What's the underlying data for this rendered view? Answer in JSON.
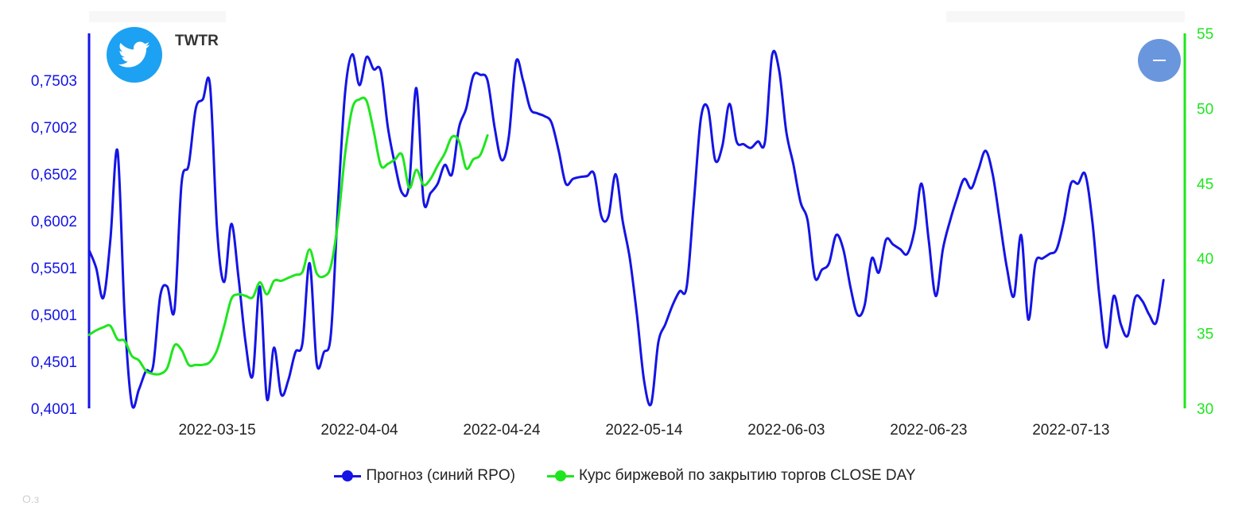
{
  "header": {
    "ticker": "TWTR",
    "logo_icon": "twitter-bird-icon"
  },
  "controls": {
    "collapse_icon": "minus-icon"
  },
  "colors": {
    "forecast": "#1414e6",
    "close": "#1ee61e",
    "twitter_blue": "#1da1f2",
    "button": "#6a96de"
  },
  "chart_data": {
    "type": "line",
    "x_ticks": [
      "2022-03-15",
      "2022-04-04",
      "2022-04-24",
      "2022-05-14",
      "2022-06-03",
      "2022-06-23",
      "2022-07-13"
    ],
    "x_tick_days": [
      18,
      38,
      58,
      78,
      98,
      118,
      138
    ],
    "x_range": [
      "2022-02-25",
      "2022-07-29"
    ],
    "legend_position": "bottom-center",
    "grid": false,
    "y_left": {
      "ticks": [
        "0,4001",
        "0,4501",
        "0,5001",
        "0,5501",
        "0,6002",
        "0,6502",
        "0,7002",
        "0,7503"
      ],
      "range": [
        0.4001,
        0.8003
      ],
      "color": "#1414e6"
    },
    "y_right": {
      "ticks": [
        "30",
        "35",
        "40",
        "45",
        "50",
        "55"
      ],
      "range": [
        30,
        55
      ],
      "color": "#1ee61e"
    },
    "series": [
      {
        "name": "Прогноз (синий RPO)",
        "axis": "left",
        "color": "#1414e6",
        "points": [
          [
            "2022-02-25",
            0.569
          ],
          [
            "2022-02-26",
            0.55
          ],
          [
            "2022-02-27",
            0.518
          ],
          [
            "2022-02-28",
            0.58
          ],
          [
            "2022-03-01",
            0.675
          ],
          [
            "2022-03-02",
            0.5
          ],
          [
            "2022-03-03",
            0.405
          ],
          [
            "2022-03-04",
            0.42
          ],
          [
            "2022-03-05",
            0.44
          ],
          [
            "2022-03-06",
            0.445
          ],
          [
            "2022-03-07",
            0.52
          ],
          [
            "2022-03-08",
            0.53
          ],
          [
            "2022-03-09",
            0.505
          ],
          [
            "2022-03-10",
            0.64
          ],
          [
            "2022-03-11",
            0.66
          ],
          [
            "2022-03-12",
            0.72
          ],
          [
            "2022-03-13",
            0.73
          ],
          [
            "2022-03-14",
            0.745
          ],
          [
            "2022-03-15",
            0.59
          ],
          [
            "2022-03-16",
            0.535
          ],
          [
            "2022-03-17",
            0.597
          ],
          [
            "2022-03-18",
            0.54
          ],
          [
            "2022-03-19",
            0.47
          ],
          [
            "2022-03-20",
            0.435
          ],
          [
            "2022-03-21",
            0.53
          ],
          [
            "2022-03-22",
            0.41
          ],
          [
            "2022-03-23",
            0.465
          ],
          [
            "2022-03-24",
            0.415
          ],
          [
            "2022-03-25",
            0.43
          ],
          [
            "2022-03-26",
            0.46
          ],
          [
            "2022-03-27",
            0.47
          ],
          [
            "2022-03-28",
            0.555
          ],
          [
            "2022-03-29",
            0.448
          ],
          [
            "2022-03-30",
            0.46
          ],
          [
            "2022-03-31",
            0.48
          ],
          [
            "2022-04-01",
            0.62
          ],
          [
            "2022-04-02",
            0.738
          ],
          [
            "2022-04-03",
            0.778
          ],
          [
            "2022-04-04",
            0.745
          ],
          [
            "2022-04-05",
            0.775
          ],
          [
            "2022-04-06",
            0.762
          ],
          [
            "2022-04-07",
            0.76
          ],
          [
            "2022-04-08",
            0.7
          ],
          [
            "2022-04-09",
            0.66
          ],
          [
            "2022-04-10",
            0.63
          ],
          [
            "2022-04-11",
            0.64
          ],
          [
            "2022-04-12",
            0.742
          ],
          [
            "2022-04-13",
            0.622
          ],
          [
            "2022-04-14",
            0.63
          ],
          [
            "2022-04-15",
            0.64
          ],
          [
            "2022-04-16",
            0.66
          ],
          [
            "2022-04-17",
            0.65
          ],
          [
            "2022-04-18",
            0.7
          ],
          [
            "2022-04-19",
            0.72
          ],
          [
            "2022-04-20",
            0.755
          ],
          [
            "2022-04-21",
            0.756
          ],
          [
            "2022-04-22",
            0.75
          ],
          [
            "2022-04-23",
            0.7
          ],
          [
            "2022-04-24",
            0.665
          ],
          [
            "2022-04-25",
            0.69
          ],
          [
            "2022-04-26",
            0.77
          ],
          [
            "2022-04-27",
            0.75
          ],
          [
            "2022-04-28",
            0.72
          ],
          [
            "2022-04-29",
            0.715
          ],
          [
            "2022-04-30",
            0.712
          ],
          [
            "2022-05-01",
            0.705
          ],
          [
            "2022-05-02",
            0.675
          ],
          [
            "2022-05-03",
            0.64
          ],
          [
            "2022-05-04",
            0.645
          ],
          [
            "2022-05-05",
            0.647
          ],
          [
            "2022-05-06",
            0.648
          ],
          [
            "2022-05-07",
            0.65
          ],
          [
            "2022-05-08",
            0.605
          ],
          [
            "2022-05-09",
            0.605
          ],
          [
            "2022-05-10",
            0.65
          ],
          [
            "2022-05-11",
            0.6
          ],
          [
            "2022-05-12",
            0.56
          ],
          [
            "2022-05-13",
            0.5
          ],
          [
            "2022-05-14",
            0.43
          ],
          [
            "2022-05-15",
            0.405
          ],
          [
            "2022-05-16",
            0.47
          ],
          [
            "2022-05-17",
            0.49
          ],
          [
            "2022-05-18",
            0.51
          ],
          [
            "2022-05-19",
            0.525
          ],
          [
            "2022-05-20",
            0.53
          ],
          [
            "2022-05-21",
            0.62
          ],
          [
            "2022-05-22",
            0.71
          ],
          [
            "2022-05-23",
            0.72
          ],
          [
            "2022-05-24",
            0.665
          ],
          [
            "2022-05-25",
            0.68
          ],
          [
            "2022-05-26",
            0.725
          ],
          [
            "2022-05-27",
            0.685
          ],
          [
            "2022-05-28",
            0.682
          ],
          [
            "2022-05-29",
            0.678
          ],
          [
            "2022-05-30",
            0.685
          ],
          [
            "2022-05-31",
            0.685
          ],
          [
            "2022-06-01",
            0.777
          ],
          [
            "2022-06-02",
            0.76
          ],
          [
            "2022-06-03",
            0.695
          ],
          [
            "2022-06-04",
            0.66
          ],
          [
            "2022-06-05",
            0.62
          ],
          [
            "2022-06-06",
            0.6
          ],
          [
            "2022-06-07",
            0.54
          ],
          [
            "2022-06-08",
            0.548
          ],
          [
            "2022-06-09",
            0.555
          ],
          [
            "2022-06-10",
            0.585
          ],
          [
            "2022-06-11",
            0.57
          ],
          [
            "2022-06-12",
            0.53
          ],
          [
            "2022-06-13",
            0.5
          ],
          [
            "2022-06-14",
            0.51
          ],
          [
            "2022-06-15",
            0.56
          ],
          [
            "2022-06-16",
            0.545
          ],
          [
            "2022-06-17",
            0.58
          ],
          [
            "2022-06-18",
            0.575
          ],
          [
            "2022-06-19",
            0.57
          ],
          [
            "2022-06-20",
            0.565
          ],
          [
            "2022-06-21",
            0.59
          ],
          [
            "2022-06-22",
            0.64
          ],
          [
            "2022-06-23",
            0.58
          ],
          [
            "2022-06-24",
            0.52
          ],
          [
            "2022-06-25",
            0.57
          ],
          [
            "2022-06-26",
            0.6
          ],
          [
            "2022-06-27",
            0.625
          ],
          [
            "2022-06-28",
            0.645
          ],
          [
            "2022-06-29",
            0.635
          ],
          [
            "2022-06-30",
            0.655
          ],
          [
            "2022-07-01",
            0.675
          ],
          [
            "2022-07-02",
            0.65
          ],
          [
            "2022-07-03",
            0.6
          ],
          [
            "2022-07-04",
            0.55
          ],
          [
            "2022-07-05",
            0.52
          ],
          [
            "2022-07-06",
            0.585
          ],
          [
            "2022-07-07",
            0.495
          ],
          [
            "2022-07-08",
            0.555
          ],
          [
            "2022-07-09",
            0.56
          ],
          [
            "2022-07-10",
            0.565
          ],
          [
            "2022-07-11",
            0.57
          ],
          [
            "2022-07-12",
            0.6
          ],
          [
            "2022-07-13",
            0.64
          ],
          [
            "2022-07-14",
            0.64
          ],
          [
            "2022-07-15",
            0.65
          ],
          [
            "2022-07-16",
            0.6
          ],
          [
            "2022-07-17",
            0.52
          ],
          [
            "2022-07-18",
            0.465
          ],
          [
            "2022-07-19",
            0.52
          ],
          [
            "2022-07-20",
            0.49
          ],
          [
            "2022-07-21",
            0.478
          ],
          [
            "2022-07-22",
            0.518
          ],
          [
            "2022-07-23",
            0.515
          ],
          [
            "2022-07-24",
            0.5
          ],
          [
            "2022-07-25",
            0.492
          ],
          [
            "2022-07-26",
            0.537
          ]
        ]
      },
      {
        "name": "Курс биржевой по закрытию торгов CLOSE DAY",
        "axis": "right",
        "color": "#1ee61e",
        "points": [
          [
            "2022-02-25",
            34.9
          ],
          [
            "2022-02-26",
            35.2
          ],
          [
            "2022-02-27",
            35.4
          ],
          [
            "2022-02-28",
            35.5
          ],
          [
            "2022-03-01",
            34.6
          ],
          [
            "2022-03-02",
            34.5
          ],
          [
            "2022-03-03",
            33.5
          ],
          [
            "2022-03-04",
            33.2
          ],
          [
            "2022-03-05",
            32.5
          ],
          [
            "2022-03-06",
            32.3
          ],
          [
            "2022-03-07",
            32.3
          ],
          [
            "2022-03-08",
            32.7
          ],
          [
            "2022-03-09",
            34.2
          ],
          [
            "2022-03-10",
            33.9
          ],
          [
            "2022-03-11",
            32.9
          ],
          [
            "2022-03-12",
            32.9
          ],
          [
            "2022-03-13",
            32.9
          ],
          [
            "2022-03-14",
            33.1
          ],
          [
            "2022-03-15",
            33.9
          ],
          [
            "2022-03-16",
            35.5
          ],
          [
            "2022-03-17",
            37.3
          ],
          [
            "2022-03-18",
            37.6
          ],
          [
            "2022-03-19",
            37.5
          ],
          [
            "2022-03-20",
            37.4
          ],
          [
            "2022-03-21",
            38.4
          ],
          [
            "2022-03-22",
            37.6
          ],
          [
            "2022-03-23",
            38.5
          ],
          [
            "2022-03-24",
            38.5
          ],
          [
            "2022-03-25",
            38.7
          ],
          [
            "2022-03-26",
            38.9
          ],
          [
            "2022-03-27",
            39.1
          ],
          [
            "2022-03-28",
            40.6
          ],
          [
            "2022-03-29",
            39.0
          ],
          [
            "2022-03-30",
            38.8
          ],
          [
            "2022-03-31",
            39.5
          ],
          [
            "2022-04-01",
            42.5
          ],
          [
            "2022-04-02",
            47.0
          ],
          [
            "2022-04-03",
            50.0
          ],
          [
            "2022-04-04",
            50.6
          ],
          [
            "2022-04-05",
            50.5
          ],
          [
            "2022-04-06",
            48.5
          ],
          [
            "2022-04-07",
            46.2
          ],
          [
            "2022-04-08",
            46.3
          ],
          [
            "2022-04-09",
            46.6
          ],
          [
            "2022-04-10",
            46.9
          ],
          [
            "2022-04-11",
            44.7
          ],
          [
            "2022-04-12",
            45.9
          ],
          [
            "2022-04-13",
            44.9
          ],
          [
            "2022-04-14",
            45.3
          ],
          [
            "2022-04-15",
            46.2
          ],
          [
            "2022-04-16",
            47.0
          ],
          [
            "2022-04-17",
            48.1
          ],
          [
            "2022-04-18",
            47.8
          ],
          [
            "2022-04-19",
            46.0
          ],
          [
            "2022-04-20",
            46.6
          ],
          [
            "2022-04-21",
            46.9
          ],
          [
            "2022-04-22",
            48.2
          ]
        ]
      }
    ]
  }
}
